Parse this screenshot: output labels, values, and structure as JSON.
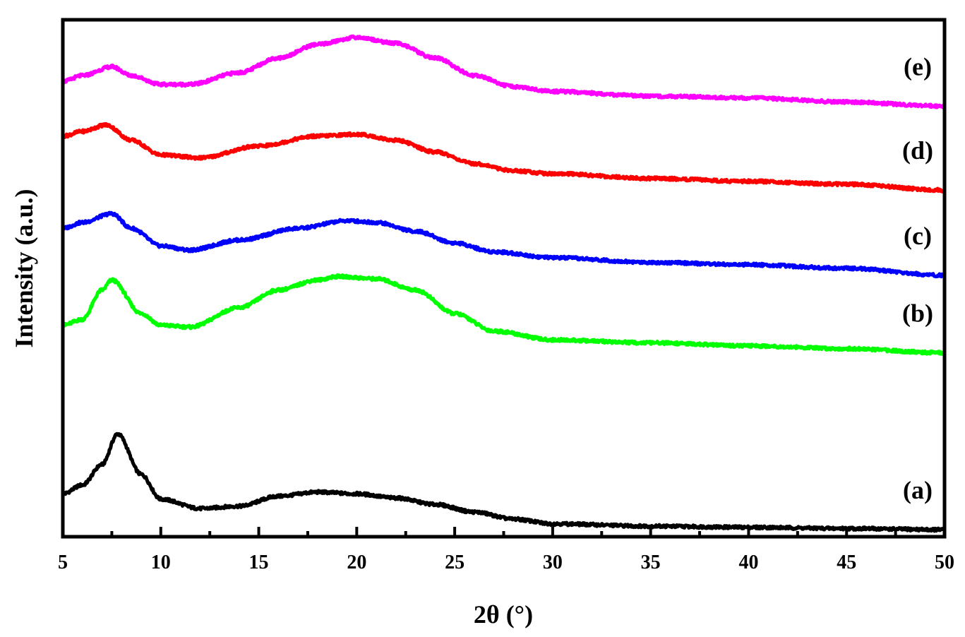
{
  "chart_data": {
    "type": "line",
    "title": "",
    "xlabel": "2θ (°)",
    "ylabel": "Intensity (a.u.)",
    "xlim": [
      5,
      50
    ],
    "x_ticks": [
      5,
      10,
      15,
      20,
      25,
      30,
      35,
      40,
      45,
      50
    ],
    "x_tick_labels": [
      "5",
      "10",
      "15",
      "20",
      "25",
      "30",
      "35",
      "40",
      "45",
      "50"
    ],
    "y_ticks_shown": false,
    "grid": false,
    "legend": "none",
    "series": [
      {
        "name": "(a)",
        "color": "#000000",
        "points": [
          [
            5,
            0.33
          ],
          [
            6,
            0.48
          ],
          [
            7,
            0.83
          ],
          [
            7.8,
            1.35
          ],
          [
            9,
            0.66
          ],
          [
            10,
            0.24
          ],
          [
            12,
            0.08
          ],
          [
            14,
            0.12
          ],
          [
            16,
            0.29
          ],
          [
            18,
            0.36
          ],
          [
            20,
            0.33
          ],
          [
            22,
            0.26
          ],
          [
            24,
            0.15
          ],
          [
            26,
            0.02
          ],
          [
            28,
            -0.1
          ],
          [
            30,
            -0.18
          ],
          [
            35,
            -0.22
          ],
          [
            40,
            -0.24
          ],
          [
            45,
            -0.26
          ],
          [
            50,
            -0.28
          ]
        ]
      },
      {
        "name": "(b)",
        "color": "#00ff00",
        "points": [
          [
            5,
            3.2
          ],
          [
            6,
            3.3
          ],
          [
            7,
            3.8
          ],
          [
            7.5,
            3.97
          ],
          [
            9,
            3.4
          ],
          [
            10,
            3.2
          ],
          [
            11.5,
            3.17
          ],
          [
            14,
            3.5
          ],
          [
            16,
            3.8
          ],
          [
            18,
            3.97
          ],
          [
            19,
            4.03
          ],
          [
            21,
            3.99
          ],
          [
            23,
            3.8
          ],
          [
            25,
            3.4
          ],
          [
            27,
            3.1
          ],
          [
            30,
            2.95
          ],
          [
            35,
            2.9
          ],
          [
            40,
            2.85
          ],
          [
            45,
            2.8
          ],
          [
            50,
            2.73
          ]
        ]
      },
      {
        "name": "(c)",
        "color": "#0000ff",
        "points": [
          [
            5,
            4.85
          ],
          [
            6,
            4.95
          ],
          [
            7.5,
            5.1
          ],
          [
            8.5,
            4.85
          ],
          [
            10,
            4.55
          ],
          [
            11.5,
            4.48
          ],
          [
            14,
            4.65
          ],
          [
            17,
            4.85
          ],
          [
            19.5,
            4.98
          ],
          [
            21,
            4.95
          ],
          [
            23,
            4.8
          ],
          [
            25,
            4.6
          ],
          [
            27,
            4.45
          ],
          [
            30,
            4.35
          ],
          [
            35,
            4.27
          ],
          [
            40,
            4.23
          ],
          [
            45,
            4.17
          ],
          [
            50,
            4.05
          ]
        ]
      },
      {
        "name": "(d)",
        "color": "#ff0000",
        "points": [
          [
            5,
            6.42
          ],
          [
            6,
            6.5
          ],
          [
            7.2,
            6.61
          ],
          [
            8.5,
            6.35
          ],
          [
            10,
            6.1
          ],
          [
            12,
            6.05
          ],
          [
            15,
            6.25
          ],
          [
            18,
            6.42
          ],
          [
            20,
            6.45
          ],
          [
            22,
            6.35
          ],
          [
            24,
            6.15
          ],
          [
            26,
            5.95
          ],
          [
            28,
            5.83
          ],
          [
            30,
            5.78
          ],
          [
            35,
            5.7
          ],
          [
            40,
            5.65
          ],
          [
            45,
            5.6
          ],
          [
            50,
            5.5
          ]
        ]
      },
      {
        "name": "(e)",
        "color": "#ff00ff",
        "points": [
          [
            5,
            7.35
          ],
          [
            6,
            7.45
          ],
          [
            7.5,
            7.6
          ],
          [
            8.5,
            7.45
          ],
          [
            10,
            7.3
          ],
          [
            11.5,
            7.3
          ],
          [
            14,
            7.5
          ],
          [
            16,
            7.75
          ],
          [
            18,
            7.98
          ],
          [
            20,
            8.1
          ],
          [
            22,
            8.0
          ],
          [
            24,
            7.75
          ],
          [
            26,
            7.45
          ],
          [
            28,
            7.26
          ],
          [
            30,
            7.18
          ],
          [
            35,
            7.1
          ],
          [
            40,
            7.07
          ],
          [
            45,
            7.0
          ],
          [
            50,
            6.93
          ]
        ]
      }
    ]
  }
}
